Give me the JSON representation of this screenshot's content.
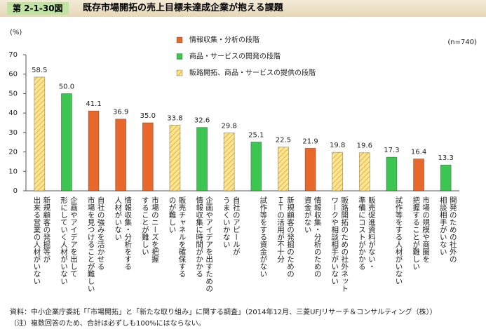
{
  "figure_label": "第 2-1-30図",
  "chart_data": {
    "type": "bar",
    "title": "既存市場開拓の売上目標未達成企業が抱える課題",
    "y_unit": "(%)",
    "sample_note": "(n=740)",
    "categories": [
      "新規顧客の発掘等が\n出来る営業の人材がいない",
      "企画やアイデアを出して\n形にしていく人材がいない",
      "自社の強みを活かせる\n市場を見つけることが難しい",
      "情報収集・分析をする\n人材がいない",
      "市場のニーズを把握\nすることが難しい",
      "販売チャネルを確保する\nのが難しい",
      "企画やアイデアを出すための\n情報収集に時間がかかる",
      "自社のアピールが\nうまくいかない",
      "試作等をする資金がない",
      "新規顧客の発掘のための\nＩＴの活用が不十分",
      "情報収集・分析のための\n資金がない",
      "販路開拓のための社外ネット\nワークや相談相手がいない",
      "販売促進資料がない・\n準備にコストがかかる",
      "試作等をする人材がいない",
      "市場の規模や商圏を\n把握することが難しい",
      "開発のための社外の\n相談相手がいない"
    ],
    "series": [
      {
        "name": "情報収集・分析の段階",
        "color": "#e8682c",
        "values": [
          null,
          null,
          41.1,
          36.9,
          35.0,
          null,
          null,
          null,
          null,
          null,
          21.9,
          null,
          null,
          null,
          16.4,
          null
        ],
        "value_labels": [
          null,
          null,
          "41.1",
          "36.9",
          "35.0",
          null,
          null,
          null,
          null,
          null,
          "21.9",
          null,
          null,
          null,
          "16.4",
          null
        ]
      },
      {
        "name": "商品・サービスの開発の段階",
        "color": "#3cc551",
        "values": [
          null,
          50.0,
          null,
          null,
          null,
          null,
          32.6,
          null,
          25.1,
          null,
          null,
          null,
          null,
          17.3,
          null,
          13.3
        ],
        "value_labels": [
          null,
          "50.0",
          null,
          null,
          null,
          null,
          "32.6",
          null,
          "25.1",
          null,
          null,
          null,
          null,
          "17.3",
          null,
          "13.3"
        ]
      },
      {
        "name": "販路開拓、商品・サービスの提供の段階",
        "color": "#f9e690",
        "hatch_color": "#e8a030",
        "values": [
          58.5,
          null,
          null,
          null,
          null,
          33.8,
          null,
          29.8,
          null,
          22.5,
          null,
          19.8,
          19.6,
          null,
          null,
          null
        ],
        "value_labels": [
          "58.5",
          null,
          null,
          null,
          null,
          "33.8",
          null,
          "29.8",
          null,
          "22.5",
          null,
          "19.8",
          "19.6",
          null,
          null,
          null
        ]
      }
    ],
    "ylim": [
      0,
      70
    ],
    "yticks": [
      0,
      10,
      20,
      30,
      40,
      50,
      60,
      70
    ],
    "grid": false
  },
  "notes": [
    "資料：中小企業庁委託「「市場開拓」と「新たな取り組み」に関する調査」（2014年12月、三菱UFJリサーチ＆コンサルティング（株））",
    "（注）複数回答のため、合計は必ずしも100%にはならない。"
  ]
}
